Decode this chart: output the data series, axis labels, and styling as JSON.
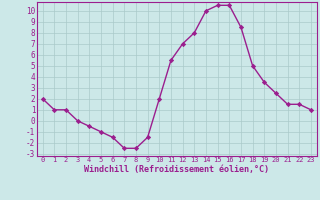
{
  "x": [
    0,
    1,
    2,
    3,
    4,
    5,
    6,
    7,
    8,
    9,
    10,
    11,
    12,
    13,
    14,
    15,
    16,
    17,
    18,
    19,
    20,
    21,
    22,
    23
  ],
  "y": [
    2,
    1,
    1,
    0,
    -0.5,
    -1,
    -1.5,
    -2.5,
    -2.5,
    -1.5,
    2,
    5.5,
    7,
    8,
    10,
    10.5,
    10.5,
    8.5,
    5,
    3.5,
    2.5,
    1.5,
    1.5,
    1
  ],
  "line_color": "#9b1e8e",
  "marker": "D",
  "marker_size": 2.2,
  "bg_color": "#cce8e8",
  "grid_color": "#aacaca",
  "xlabel": "Windchill (Refroidissement éolien,°C)",
  "xlabel_color": "#9b1e8e",
  "tick_color": "#9b1e8e",
  "ylim": [
    -3.2,
    10.8
  ],
  "xlim": [
    -0.5,
    23.5
  ],
  "yticks": [
    -3,
    -2,
    -1,
    0,
    1,
    2,
    3,
    4,
    5,
    6,
    7,
    8,
    9,
    10
  ],
  "xticks": [
    0,
    1,
    2,
    3,
    4,
    5,
    6,
    7,
    8,
    9,
    10,
    11,
    12,
    13,
    14,
    15,
    16,
    17,
    18,
    19,
    20,
    21,
    22,
    23
  ],
  "spine_color": "#9b1e8e",
  "line_width": 1.0
}
